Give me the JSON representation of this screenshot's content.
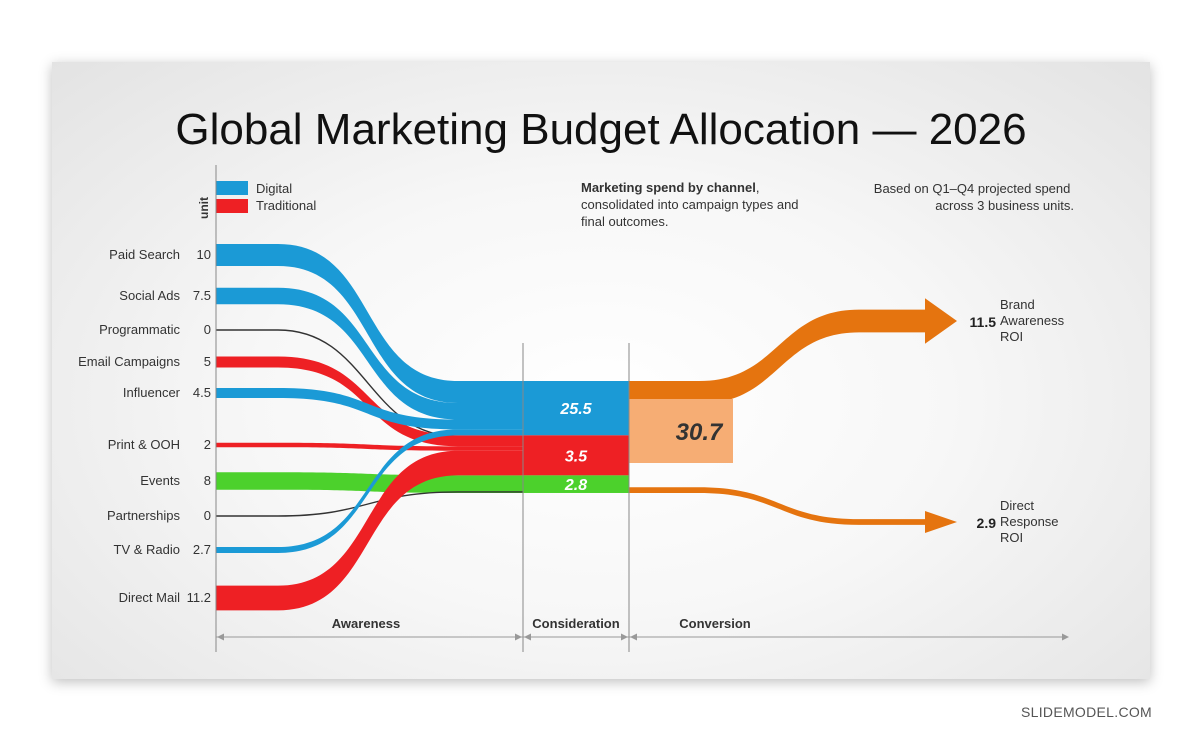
{
  "title": "Global Marketing Budget Allocation — 2026",
  "axis_unit_label": "unit",
  "legend": [
    {
      "label": "Digital",
      "color": "#1b9ad6"
    },
    {
      "label": "Traditional",
      "color": "#ee2024"
    }
  ],
  "note_center": {
    "bold": "Marketing spend by channel",
    "rest_line1": ",",
    "line2": "consolidated into campaign types and",
    "line3": "final outcomes."
  },
  "note_right": {
    "line1": "Based on Q1–Q4 projected spend",
    "line2": "across 3 business units."
  },
  "colors": {
    "digital": "#1b9ad6",
    "traditional": "#ee2024",
    "green": "#4cd12c",
    "zero": "#333333",
    "outcome": "#e5740f",
    "total_box": "#f6ad74"
  },
  "chart_data": {
    "type": "sankey",
    "sources": [
      {
        "label": "Paid Search",
        "value": 10,
        "value_label": "10",
        "category": "digital"
      },
      {
        "label": "Social Ads",
        "value": 7.5,
        "value_label": "7.5",
        "category": "digital"
      },
      {
        "label": "Programmatic",
        "value": 0,
        "value_label": "0",
        "category": "zero"
      },
      {
        "label": "Email Campaigns",
        "value": 5,
        "value_label": "5",
        "category": "traditional"
      },
      {
        "label": "Influencer",
        "value": 4.5,
        "value_label": "4.5",
        "category": "digital"
      },
      {
        "label": "Print & OOH",
        "value": 2,
        "value_label": "2",
        "category": "traditional"
      },
      {
        "label": "Events",
        "value": 8,
        "value_label": "8",
        "category": "green"
      },
      {
        "label": "Partnerships",
        "value": 0,
        "value_label": "0",
        "category": "zero"
      },
      {
        "label": "TV & Radio",
        "value": 2.7,
        "value_label": "2.7",
        "category": "digital"
      },
      {
        "label": "Direct Mail",
        "value": 11.2,
        "value_label": "11.2",
        "category": "traditional"
      }
    ],
    "middle": [
      {
        "label": "25.5",
        "value": 25.5,
        "category": "digital"
      },
      {
        "label": "3.5",
        "value": 3.5,
        "category": "traditional"
      },
      {
        "label": "2.8",
        "value": 2.8,
        "category": "green"
      }
    ],
    "total": {
      "label": "30.7",
      "value": 30.7
    },
    "outcomes": [
      {
        "value": 11.5,
        "value_label": "11.5",
        "lines": [
          "Brand",
          "Awareness",
          "ROI"
        ]
      },
      {
        "value": 2.9,
        "value_label": "2.9",
        "lines": [
          "Direct",
          "Response",
          "ROI"
        ]
      }
    ],
    "stages": [
      "Awareness",
      "Consideration",
      "Conversion"
    ]
  }
}
